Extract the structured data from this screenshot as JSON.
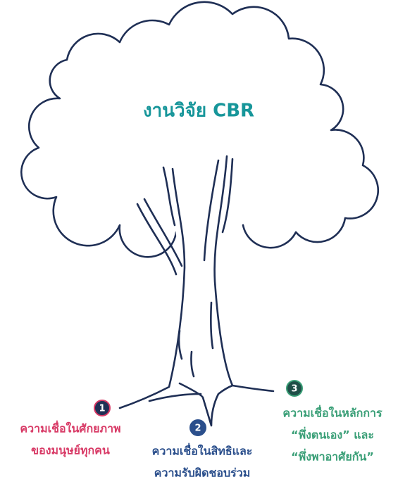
{
  "title": "งานวิจัย CBR",
  "beliefs": [
    {
      "number": 1,
      "lines": [
        "ความเชื่อในศักยภาพ",
        "ของมนุษย์ทุกคน"
      ]
    },
    {
      "number": 2,
      "lines": [
        "ความเชื่อในสิทธิและ",
        "ความรับผิดชอบร่วม"
      ]
    },
    {
      "number": 3,
      "lines": [
        "ความเชื่อในหลักการ",
        "“พึ่งตนเอง” และ",
        "“พึ่งพาอาศัยกัน”"
      ]
    }
  ]
}
